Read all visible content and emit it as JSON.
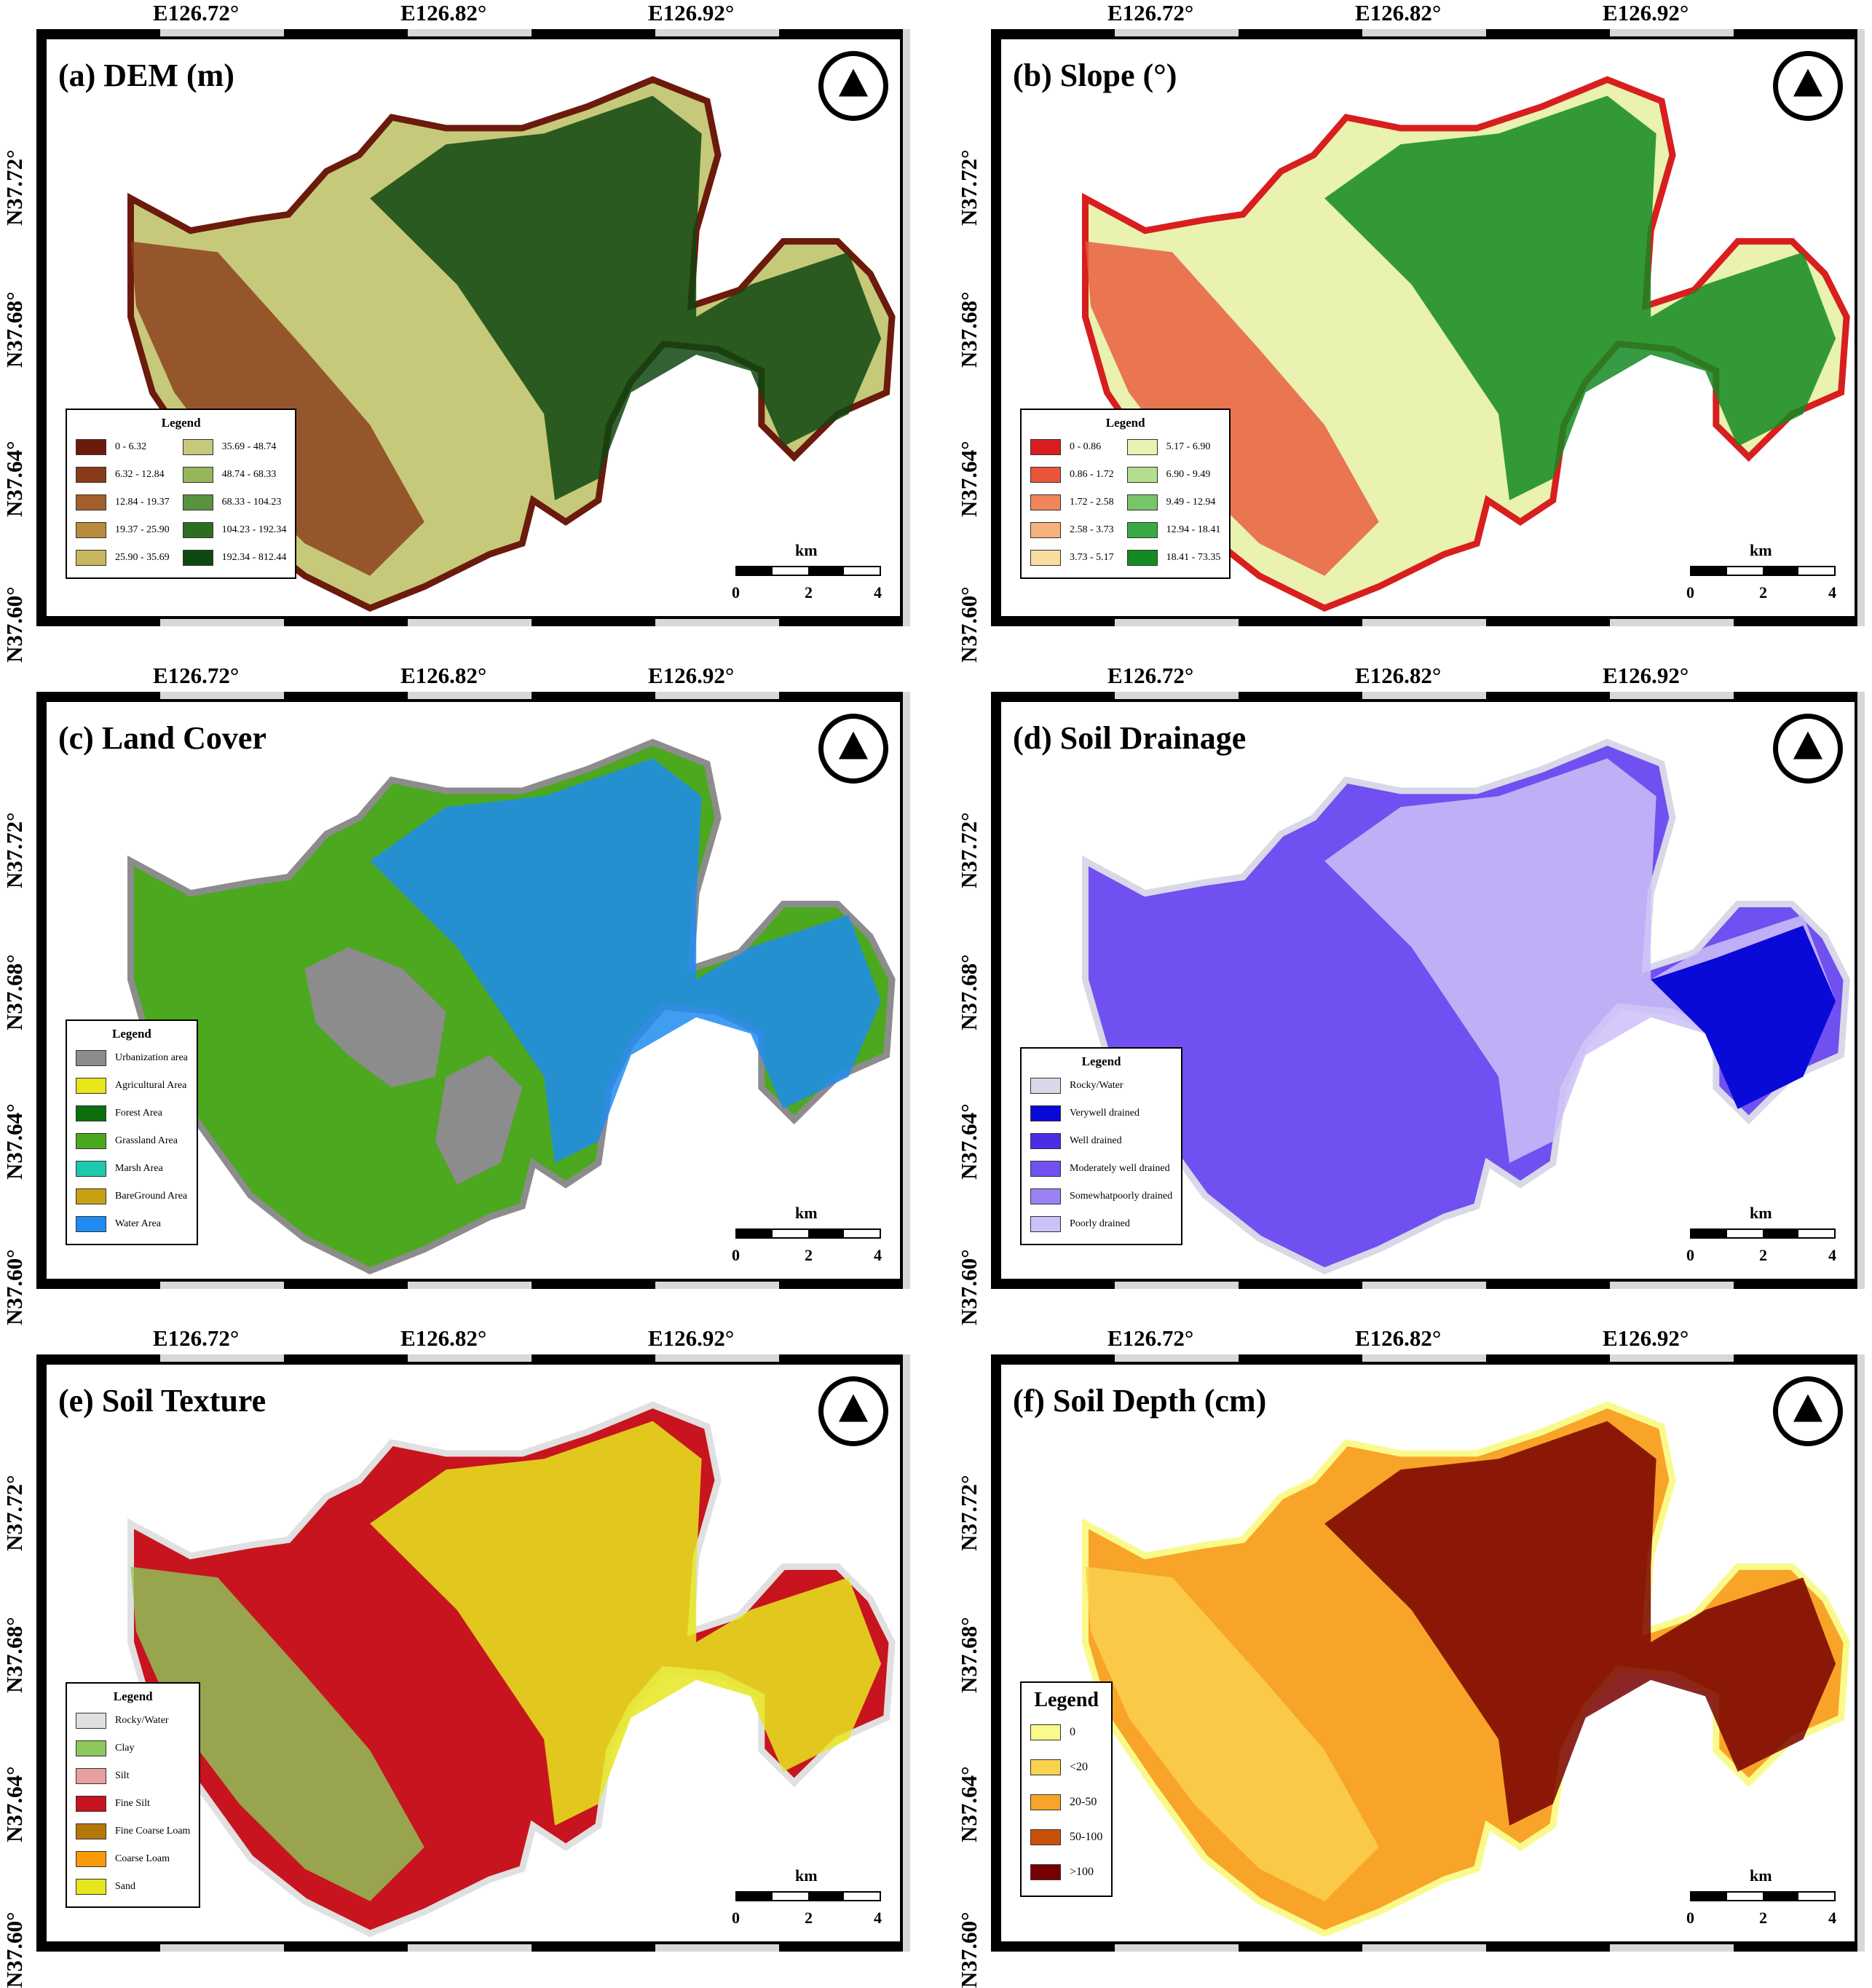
{
  "x_ticks": [
    "E126.72°",
    "E126.82°",
    "E126.92°"
  ],
  "y_ticks": [
    "N37.72°",
    "N37.68°",
    "N37.64°",
    "N37.60°"
  ],
  "north_arrow": "north-arrow-icon",
  "scale_bar": {
    "unit": "km",
    "ticks": [
      "0",
      "2",
      "4"
    ]
  },
  "panels": [
    {
      "title": "(a) DEM (m)",
      "legend_title": "Legend",
      "legend_layout": "two-column",
      "classes": [
        {
          "label": "0 - 6.32",
          "color": "#6b1a0c"
        },
        {
          "label": "6.32 - 12.84",
          "color": "#8a3a18"
        },
        {
          "label": "12.84 - 19.37",
          "color": "#a45f2a"
        },
        {
          "label": "19.37 - 25.90",
          "color": "#b88a3e"
        },
        {
          "label": "25.90 - 35.69",
          "color": "#c9b75e"
        },
        {
          "label": "35.69 - 48.74",
          "color": "#c6c979"
        },
        {
          "label": "48.74 - 68.33",
          "color": "#97b55b"
        },
        {
          "label": "68.33 - 104.23",
          "color": "#5a9140"
        },
        {
          "label": "104.23 - 192.34",
          "color": "#2c6e21"
        },
        {
          "label": "192.34 - 812.44",
          "color": "#0f4710"
        }
      ]
    },
    {
      "title": "(b) Slope (°)",
      "legend_title": "Legend",
      "legend_layout": "two-column",
      "classes": [
        {
          "label": "0 - 0.86",
          "color": "#d81e1e"
        },
        {
          "label": "0.86 - 1.72",
          "color": "#e8553a"
        },
        {
          "label": "1.72 - 2.58",
          "color": "#f0855a"
        },
        {
          "label": "2.58 - 3.73",
          "color": "#f6b07c"
        },
        {
          "label": "3.73 - 5.17",
          "color": "#fbdca0"
        },
        {
          "label": "5.17 - 6.90",
          "color": "#e9f2b0"
        },
        {
          "label": "6.90 - 9.49",
          "color": "#b5dd8e"
        },
        {
          "label": "9.49 - 12.94",
          "color": "#78c46a"
        },
        {
          "label": "12.94 - 18.41",
          "color": "#3aa844"
        },
        {
          "label": "18.41 - 73.35",
          "color": "#138a22"
        }
      ]
    },
    {
      "title": "(c) Land Cover",
      "legend_title": "Legend",
      "legend_layout": "one-column",
      "classes": [
        {
          "label": "Urbanization area",
          "color": "#8c8c8c"
        },
        {
          "label": "Agricultural Area",
          "color": "#e6e619"
        },
        {
          "label": "Forest Area",
          "color": "#0d6e0d"
        },
        {
          "label": "Grassland Area",
          "color": "#4ca81e"
        },
        {
          "label": "Marsh Area",
          "color": "#1ec8aa"
        },
        {
          "label": "BareGround Area",
          "color": "#c8a014"
        },
        {
          "label": "Water Area",
          "color": "#1e8cf0"
        }
      ]
    },
    {
      "title": "(d) Soil Drainage",
      "legend_title": "Legend",
      "legend_layout": "one-column",
      "classes": [
        {
          "label": "Rocky/Water",
          "color": "#d8d8e8"
        },
        {
          "label": "Verywell drained",
          "color": "#0a0ad8"
        },
        {
          "label": "Well drained",
          "color": "#4a2ee6"
        },
        {
          "label": "Moderately well drained",
          "color": "#7050f0"
        },
        {
          "label": "Somewhatpoorly drained",
          "color": "#9a82f5"
        },
        {
          "label": "Poorly drained",
          "color": "#ccc0f8"
        }
      ]
    },
    {
      "title": "(e) Soil Texture",
      "legend_title": "Legend",
      "legend_layout": "one-column",
      "classes": [
        {
          "label": "Rocky/Water",
          "color": "#e0e0e0"
        },
        {
          "label": "Clay",
          "color": "#8cc85a"
        },
        {
          "label": "Silt",
          "color": "#e6a0a0"
        },
        {
          "label": "Fine Silt",
          "color": "#c8141e"
        },
        {
          "label": "Fine Coarse Loam",
          "color": "#b4780a"
        },
        {
          "label": "Coarse Loam",
          "color": "#fa9a0a"
        },
        {
          "label": "Sand",
          "color": "#e6e61e"
        }
      ]
    },
    {
      "title": "(f) Soil Depth (cm)",
      "legend_title": "Legend",
      "legend_layout": "big",
      "classes": [
        {
          "label": "0",
          "color": "#fafa8c"
        },
        {
          "label": "<20",
          "color": "#fad250"
        },
        {
          "label": "20-50",
          "color": "#f8a428"
        },
        {
          "label": "50-100",
          "color": "#c8520a"
        },
        {
          "label": ">100",
          "color": "#780000"
        }
      ]
    }
  ]
}
